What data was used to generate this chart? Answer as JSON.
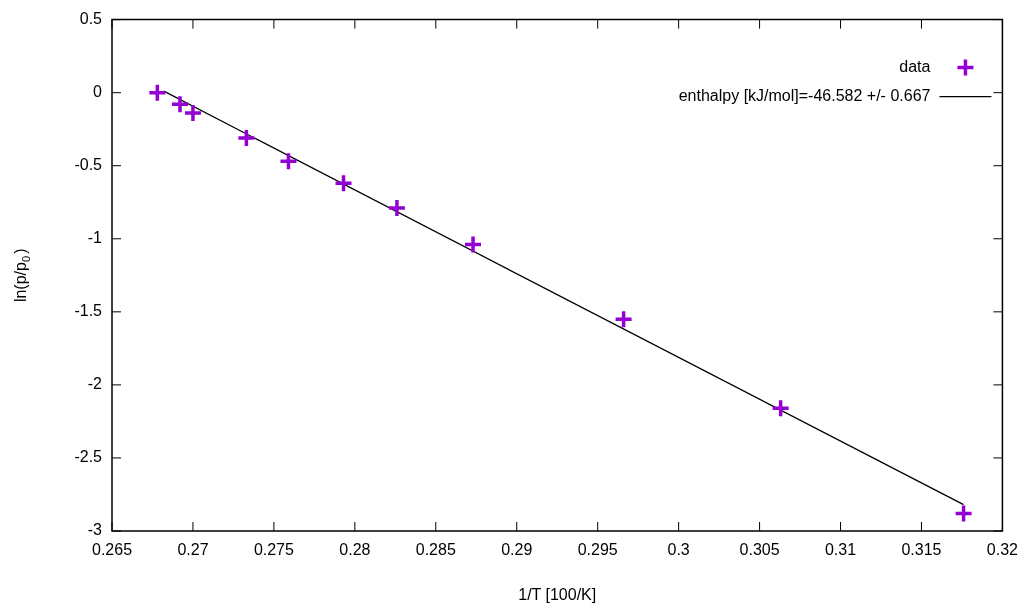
{
  "chart_data": {
    "type": "scatter",
    "xlabel": "1/T [100/K]",
    "ylabel": "ln(p/p$_{0}$)",
    "xlim": [
      0.265,
      0.32
    ],
    "xticks": [
      0.265,
      0.27,
      0.275,
      0.28,
      0.285,
      0.29,
      0.295,
      0.3,
      0.305,
      0.31,
      0.315,
      0.32
    ],
    "ylim": [
      -3,
      0.5
    ],
    "yticks": [
      -3,
      -2.5,
      -2,
      -1.5,
      -1,
      -0.5,
      0,
      0.5
    ],
    "grid": false,
    "legend": "top right",
    "marker": "cross",
    "series": [
      {
        "name": "data",
        "color": "#9400d3",
        "x": [
          0.2678,
          0.2692,
          0.27,
          0.2733,
          0.2759,
          0.2793,
          0.2826,
          0.2873,
          0.2966,
          0.3063,
          0.3176
        ],
        "values": [
          0,
          -0.08,
          -0.14,
          -0.31,
          -0.47,
          -0.62,
          -0.79,
          -1.04,
          -1.55,
          -2.16,
          -2.88
        ]
      },
      {
        "name": "enthalpy [kJ/mol]=-46.582 +/- 0.667",
        "type": "line",
        "marker": "none",
        "color": "#000000",
        "x": [
          0.2682,
          0.3176
        ],
        "values": [
          0.01,
          -2.82
        ]
      }
    ]
  }
}
